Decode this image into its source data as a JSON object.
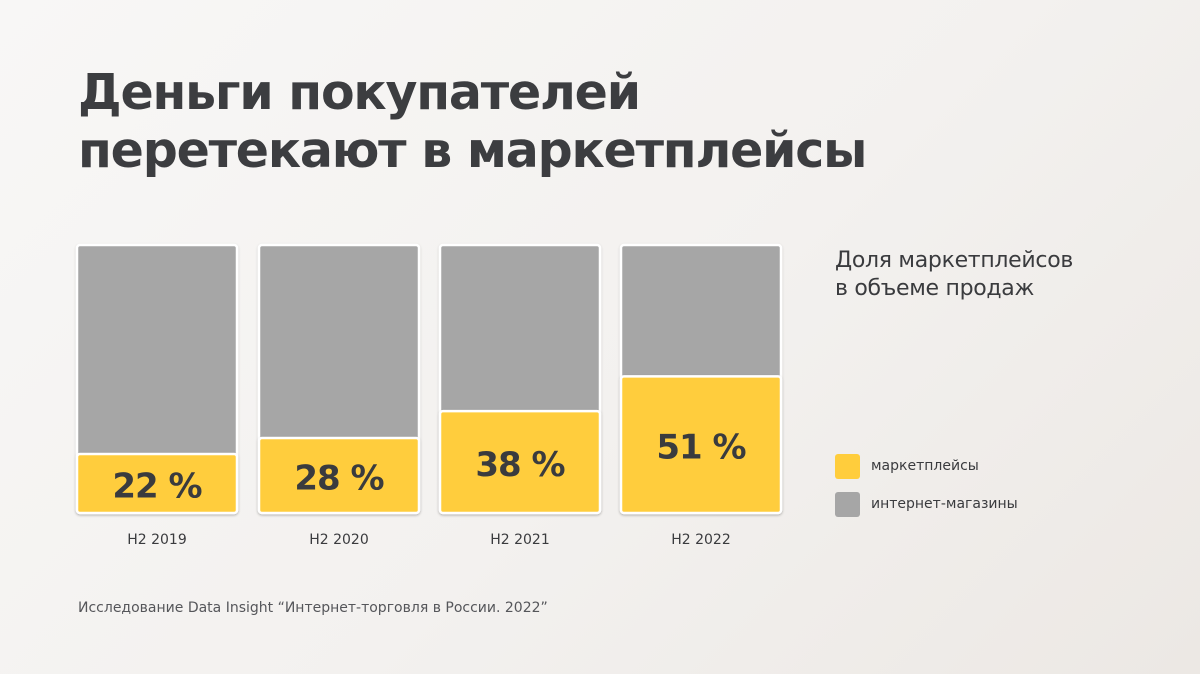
{
  "title_lines": [
    "Деньги покупателей",
    "перетекают в маркетплейсы"
  ],
  "chart_data": {
    "type": "bar",
    "stacked": true,
    "normalized_to": 100,
    "subtitle_lines": [
      "Доля маркетплейсов",
      "в объеме продаж"
    ],
    "categories": [
      "H2 2019",
      "H2 2020",
      "H2 2021",
      "H2 2022"
    ],
    "series": [
      {
        "name": "маркетплейсы",
        "values": [
          22,
          28,
          38,
          51
        ],
        "color": "#ffcd3c"
      },
      {
        "name": "интернет-магазины",
        "values": [
          78,
          72,
          62,
          49
        ],
        "color": "#a6a6a6"
      }
    ],
    "data_labels": [
      "22 %",
      "28 %",
      "38 %",
      "51 %"
    ],
    "ylim": [
      0,
      100
    ],
    "grid": false,
    "legend_position": "right"
  },
  "source": "Исследование Data Insight “Интернет-торговля в России. 2022”"
}
